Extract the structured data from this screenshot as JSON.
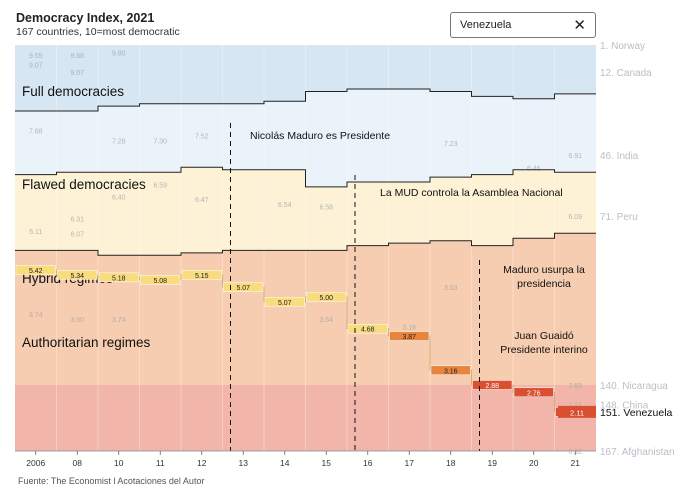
{
  "header": {
    "title": "Democracy Index, 2021",
    "subtitle": "167 countries, 10=most democratic"
  },
  "country_select": {
    "selected": "Venezuela",
    "clear_glyph": "✕",
    "clear_icon": "close-icon"
  },
  "footer": {
    "source": "Fuente: The Economist l Acotaciones del Autor"
  },
  "colors": {
    "full": "#d6e6f3",
    "flawed": "#eaf3fa",
    "hybrid": "#fdf2d5",
    "authoritarian": "#f6cdb0",
    "bottom": "#eda4a4",
    "highlight_orange": "#e7853e",
    "highlight_red": "#d94f30",
    "highlight_yellow": "#f8dc7e"
  },
  "chart_data": {
    "type": "line",
    "title": "Democracy Index, 2021",
    "subtitle": "167 countries, 10=most democratic",
    "x_ticks": [
      "2006",
      "08",
      "10",
      "11",
      "12",
      "13",
      "14",
      "15",
      "16",
      "17",
      "18",
      "19",
      "20",
      "21"
    ],
    "years": [
      2006,
      2008,
      2010,
      2011,
      2012,
      2013,
      2014,
      2015,
      2016,
      2017,
      2018,
      2019,
      2020,
      2021
    ],
    "y_axis": "rank (1 = top), 167 countries",
    "ylim_rank": [
      1,
      167
    ],
    "grid": false,
    "legend": "none",
    "regime_labels": [
      "Full democracies",
      "Flawed democracies",
      "Hybrid regimes",
      "Authoritarian regimes"
    ],
    "regime_boundaries_rank": {
      "full_flawed": [
        28,
        28,
        26,
        25,
        25,
        25,
        24,
        20,
        19,
        19,
        20,
        22,
        23,
        21
      ],
      "flawed_hybrid": [
        54,
        53,
        53,
        53,
        51,
        52,
        52,
        59,
        57,
        57,
        55,
        54,
        52,
        53
      ],
      "hybrid_authoritarian": [
        85,
        85,
        87,
        87,
        86,
        85,
        85,
        85,
        83,
        82,
        81,
        83,
        80,
        78
      ]
    },
    "highlighted_series": {
      "name": "Venezuela",
      "ranks": [
        93,
        95,
        96,
        97,
        95,
        100,
        106,
        104,
        117,
        120,
        134,
        140,
        143,
        151
      ],
      "values": [
        5.42,
        5.34,
        5.18,
        5.08,
        5.15,
        5.07,
        5.07,
        5.0,
        4.68,
        3.87,
        3.16,
        2.88,
        2.76,
        2.11
      ]
    },
    "annotations": [
      {
        "year": 2013,
        "text": "Nicolás Maduro es Presidente"
      },
      {
        "year": 2016,
        "text": "La MUD controla la Asamblea Nacional"
      },
      {
        "year": 2019,
        "text": "Maduro usurpa la presidencia"
      },
      {
        "year": 2019,
        "text": "Juan Guaidó Presidente interino"
      }
    ],
    "right_labels": [
      {
        "rank": 1,
        "text": "1. Norway"
      },
      {
        "rank": 12,
        "text": "12. Canada"
      },
      {
        "rank": 46,
        "text": "46. India"
      },
      {
        "rank": 71,
        "text": "71. Peru"
      },
      {
        "rank": 140,
        "text": "140. Nicaragua"
      },
      {
        "rank": 148,
        "text": "148. China"
      },
      {
        "rank": 151,
        "text": "151. Venezuela",
        "highlight": true
      },
      {
        "rank": 167,
        "text": "167. Afghanistan"
      }
    ],
    "faded_band_values": [
      {
        "year": 2006,
        "rank": 5,
        "text": "9.55"
      },
      {
        "year": 2008,
        "rank": 5,
        "text": "9.68"
      },
      {
        "year": 2010,
        "rank": 4,
        "text": "9.80"
      },
      {
        "year": 2006,
        "rank": 9,
        "text": "9.07"
      },
      {
        "year": 2008,
        "rank": 12,
        "text": "9.07"
      },
      {
        "year": 2006,
        "rank": 36,
        "text": "7.68"
      },
      {
        "year": 2010,
        "rank": 40,
        "text": "7.28"
      },
      {
        "year": 2011,
        "rank": 40,
        "text": "7.30"
      },
      {
        "year": 2012,
        "rank": 38,
        "text": "7.52"
      },
      {
        "year": 2018,
        "rank": 41,
        "text": "7.23"
      },
      {
        "year": 2021,
        "rank": 46,
        "text": "6.91"
      },
      {
        "year": 2020,
        "rank": 51,
        "text": "6.46"
      },
      {
        "year": 2011,
        "rank": 58,
        "text": "6.59"
      },
      {
        "year": 2010,
        "rank": 63,
        "text": "6.40"
      },
      {
        "year": 2012,
        "rank": 64,
        "text": "6.47"
      },
      {
        "year": 2014,
        "rank": 66,
        "text": "6.54"
      },
      {
        "year": 2015,
        "rank": 67,
        "text": "6.58"
      },
      {
        "year": 2008,
        "rank": 72,
        "text": "6.31"
      },
      {
        "year": 2021,
        "rank": 71,
        "text": "6.09"
      },
      {
        "year": 2006,
        "rank": 77,
        "text": "6.11"
      },
      {
        "year": 2008,
        "rank": 78,
        "text": "6.07"
      },
      {
        "year": 2006,
        "rank": 111,
        "text": "3.74"
      },
      {
        "year": 2008,
        "rank": 113,
        "text": "3.60"
      },
      {
        "year": 2010,
        "rank": 113,
        "text": "3.74"
      },
      {
        "year": 2015,
        "rank": 113,
        "text": "3.54"
      },
      {
        "year": 2017,
        "rank": 116,
        "text": "3.16"
      },
      {
        "year": 2018,
        "rank": 100,
        "text": "3.63"
      },
      {
        "year": 2021,
        "rank": 140,
        "text": "2.69"
      },
      {
        "year": 2021,
        "rank": 148,
        "text": "2.21"
      },
      {
        "year": 2021,
        "rank": 167,
        "text": "0.32"
      }
    ]
  }
}
